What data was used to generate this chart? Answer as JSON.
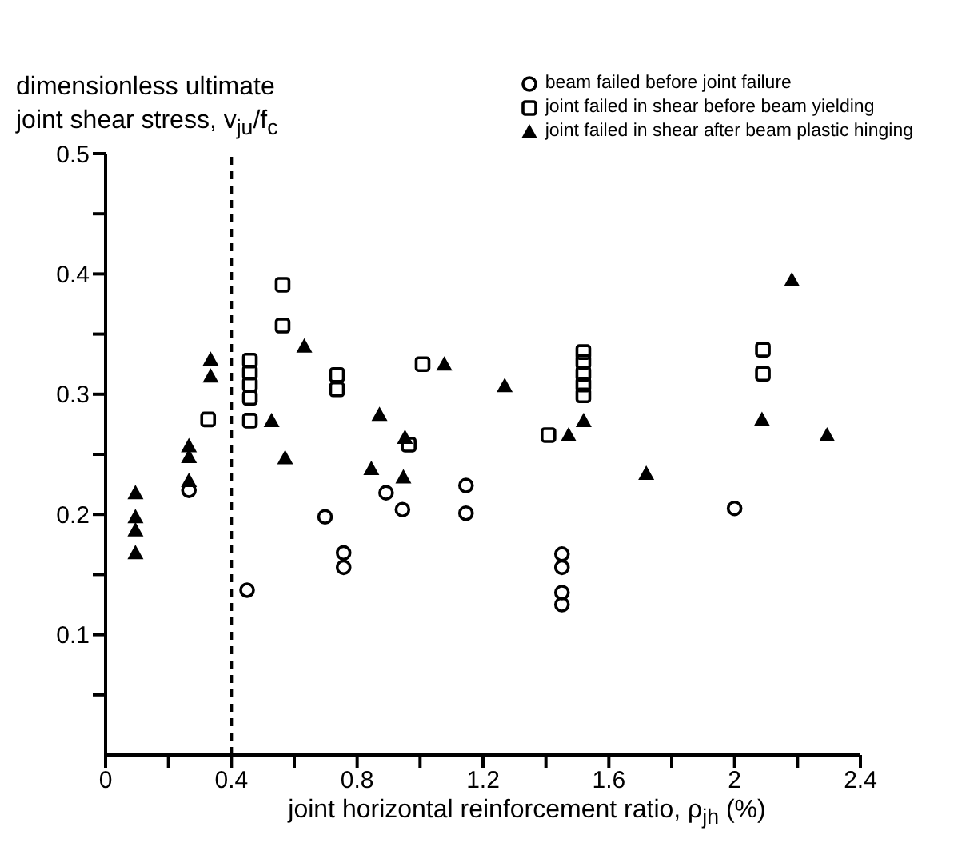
{
  "chart_data": {
    "type": "scatter",
    "xlabel": "joint horizontal reinforcement ratio, ρ$_{jh}$ (%)",
    "ylabel": "dimensionless ultimate joint shear stress, v$_{ju}$/f$_{c}$",
    "xlim": [
      0,
      2.4
    ],
    "xticks": [
      0,
      {
        "value": 0.2,
        "label": null
      },
      0.4,
      {
        "value": 0.6,
        "label": null
      },
      0.8,
      {
        "value": 1.0,
        "label": null
      },
      1.2,
      {
        "value": 1.4,
        "label": null
      },
      1.6,
      {
        "value": 1.8,
        "label": null
      },
      2.0,
      {
        "value": 2.2,
        "label": null
      },
      2.4
    ],
    "ylim": [
      0,
      0.5
    ],
    "yticks": [
      {
        "value": 0.05,
        "label": null
      },
      0.1,
      {
        "value": 0.15,
        "label": null
      },
      0.2,
      {
        "value": 0.25,
        "label": null
      },
      0.3,
      {
        "value": 0.35,
        "label": null
      },
      0.4,
      {
        "value": 0.45,
        "label": null
      },
      0.5
    ],
    "legend": "top right",
    "ref_lines": [
      {
        "axis": "x",
        "value": 0.4,
        "label": null,
        "color": "#000000",
        "line_style": "dashed"
      }
    ],
    "series": [
      {
        "name": "beam failed before joint failure",
        "color": "#000000",
        "marker": "circle",
        "x": [
          0.265,
          0.45,
          0.698,
          0.757,
          0.757,
          0.892,
          0.944,
          1.146,
          1.146,
          1.451,
          1.451,
          1.451,
          1.451,
          2.0
        ],
        "values": [
          0.22,
          0.137,
          0.198,
          0.168,
          0.156,
          0.218,
          0.204,
          0.224,
          0.201,
          0.167,
          0.156,
          0.135,
          0.125,
          0.205
        ]
      },
      {
        "name": "joint failed in shear before beam yielding",
        "color": "#000000",
        "marker": "square",
        "x": [
          0.326,
          0.459,
          0.459,
          0.459,
          0.459,
          0.459,
          0.563,
          0.563,
          0.736,
          0.736,
          0.964,
          1.008,
          1.408,
          1.519,
          1.519,
          1.519,
          1.519,
          1.519,
          2.09,
          2.09
        ],
        "values": [
          0.279,
          0.328,
          0.318,
          0.308,
          0.297,
          0.278,
          0.391,
          0.357,
          0.316,
          0.304,
          0.258,
          0.325,
          0.266,
          0.335,
          0.327,
          0.317,
          0.308,
          0.299,
          0.337,
          0.317
        ]
      },
      {
        "name": "joint failed in shear after beam plastic hinging",
        "color": "#000000",
        "marker": "triangle",
        "x": [
          0.095,
          0.095,
          0.095,
          0.095,
          0.265,
          0.265,
          0.265,
          0.334,
          0.334,
          0.528,
          0.571,
          0.632,
          0.845,
          0.871,
          0.947,
          0.952,
          1.077,
          1.269,
          1.472,
          1.52,
          1.719,
          2.087,
          2.182,
          2.294
        ],
        "values": [
          0.218,
          0.198,
          0.187,
          0.168,
          0.257,
          0.248,
          0.228,
          0.329,
          0.315,
          0.278,
          0.247,
          0.34,
          0.238,
          0.283,
          0.231,
          0.264,
          0.325,
          0.307,
          0.266,
          0.278,
          0.234,
          0.279,
          0.395,
          0.266
        ]
      }
    ]
  }
}
